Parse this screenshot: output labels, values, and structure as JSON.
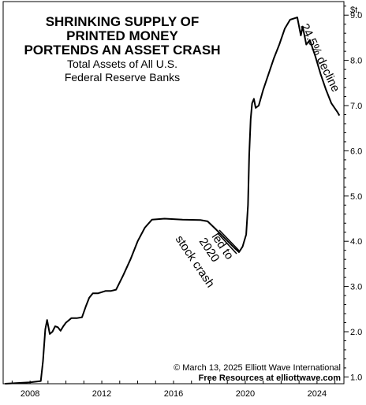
{
  "chart_data": {
    "type": "line",
    "title": [
      "SHRINKING SUPPLY OF",
      "PRINTED MONEY",
      "PORTENDS AN ASSET CRASH"
    ],
    "subtitle": [
      "Total Assets of All U.S.",
      "Federal Reserve Banks"
    ],
    "y_unit": "$t.",
    "xlim": [
      2006.5,
      2025.5
    ],
    "ylim": [
      0.85,
      9.3
    ],
    "x_ticks": [
      2008,
      2012,
      2016,
      2020,
      2024
    ],
    "y_ticks": [
      "1.0",
      "2.0",
      "3.0",
      "4.0",
      "5.0",
      "6.0",
      "7.0",
      "8.0",
      "9.0"
    ],
    "series": [
      {
        "values": [
          [
            2006.6,
            0.85
          ],
          [
            2007.5,
            0.87
          ],
          [
            2008.0,
            0.88
          ],
          [
            2008.6,
            0.91
          ],
          [
            2008.72,
            1.35
          ],
          [
            2008.85,
            2.05
          ],
          [
            2008.95,
            2.26
          ],
          [
            2009.1,
            1.95
          ],
          [
            2009.25,
            2.0
          ],
          [
            2009.4,
            2.12
          ],
          [
            2009.55,
            2.1
          ],
          [
            2009.7,
            2.02
          ],
          [
            2009.85,
            2.12
          ],
          [
            2010.0,
            2.2
          ],
          [
            2010.3,
            2.3
          ],
          [
            2010.6,
            2.3
          ],
          [
            2010.9,
            2.32
          ],
          [
            2011.1,
            2.55
          ],
          [
            2011.3,
            2.75
          ],
          [
            2011.5,
            2.85
          ],
          [
            2011.8,
            2.85
          ],
          [
            2012.2,
            2.9
          ],
          [
            2012.5,
            2.9
          ],
          [
            2012.8,
            2.93
          ],
          [
            2013.2,
            3.25
          ],
          [
            2013.6,
            3.6
          ],
          [
            2014.0,
            4.0
          ],
          [
            2014.4,
            4.3
          ],
          [
            2014.8,
            4.48
          ],
          [
            2015.5,
            4.5
          ],
          [
            2016.5,
            4.48
          ],
          [
            2017.5,
            4.47
          ],
          [
            2017.9,
            4.44
          ],
          [
            2018.4,
            4.25
          ],
          [
            2018.9,
            4.05
          ],
          [
            2019.4,
            3.85
          ],
          [
            2019.65,
            3.76
          ],
          [
            2019.85,
            3.88
          ],
          [
            2020.05,
            4.15
          ],
          [
            2020.15,
            4.8
          ],
          [
            2020.22,
            5.9
          ],
          [
            2020.3,
            6.7
          ],
          [
            2020.38,
            7.05
          ],
          [
            2020.48,
            7.15
          ],
          [
            2020.58,
            6.95
          ],
          [
            2020.75,
            7.0
          ],
          [
            2021.0,
            7.35
          ],
          [
            2021.3,
            7.7
          ],
          [
            2021.6,
            8.05
          ],
          [
            2021.9,
            8.35
          ],
          [
            2022.2,
            8.7
          ],
          [
            2022.5,
            8.9
          ],
          [
            2022.9,
            8.95
          ],
          [
            2023.1,
            8.55
          ],
          [
            2023.2,
            8.75
          ],
          [
            2023.4,
            8.35
          ],
          [
            2023.6,
            8.45
          ],
          [
            2023.9,
            8.1
          ],
          [
            2024.2,
            7.7
          ],
          [
            2024.5,
            7.35
          ],
          [
            2024.8,
            7.05
          ],
          [
            2025.15,
            6.85
          ],
          [
            2025.25,
            6.78
          ]
        ]
      }
    ],
    "annotations": [
      {
        "lines": [
          "led to",
          "2020",
          "stock crash"
        ]
      },
      {
        "lines": [
          "24.5% decline"
        ]
      }
    ],
    "credit": {
      "line1": "© March 13, 2025 Elliott Wave International",
      "line2": "Free Resources at elliottwave.com"
    }
  }
}
